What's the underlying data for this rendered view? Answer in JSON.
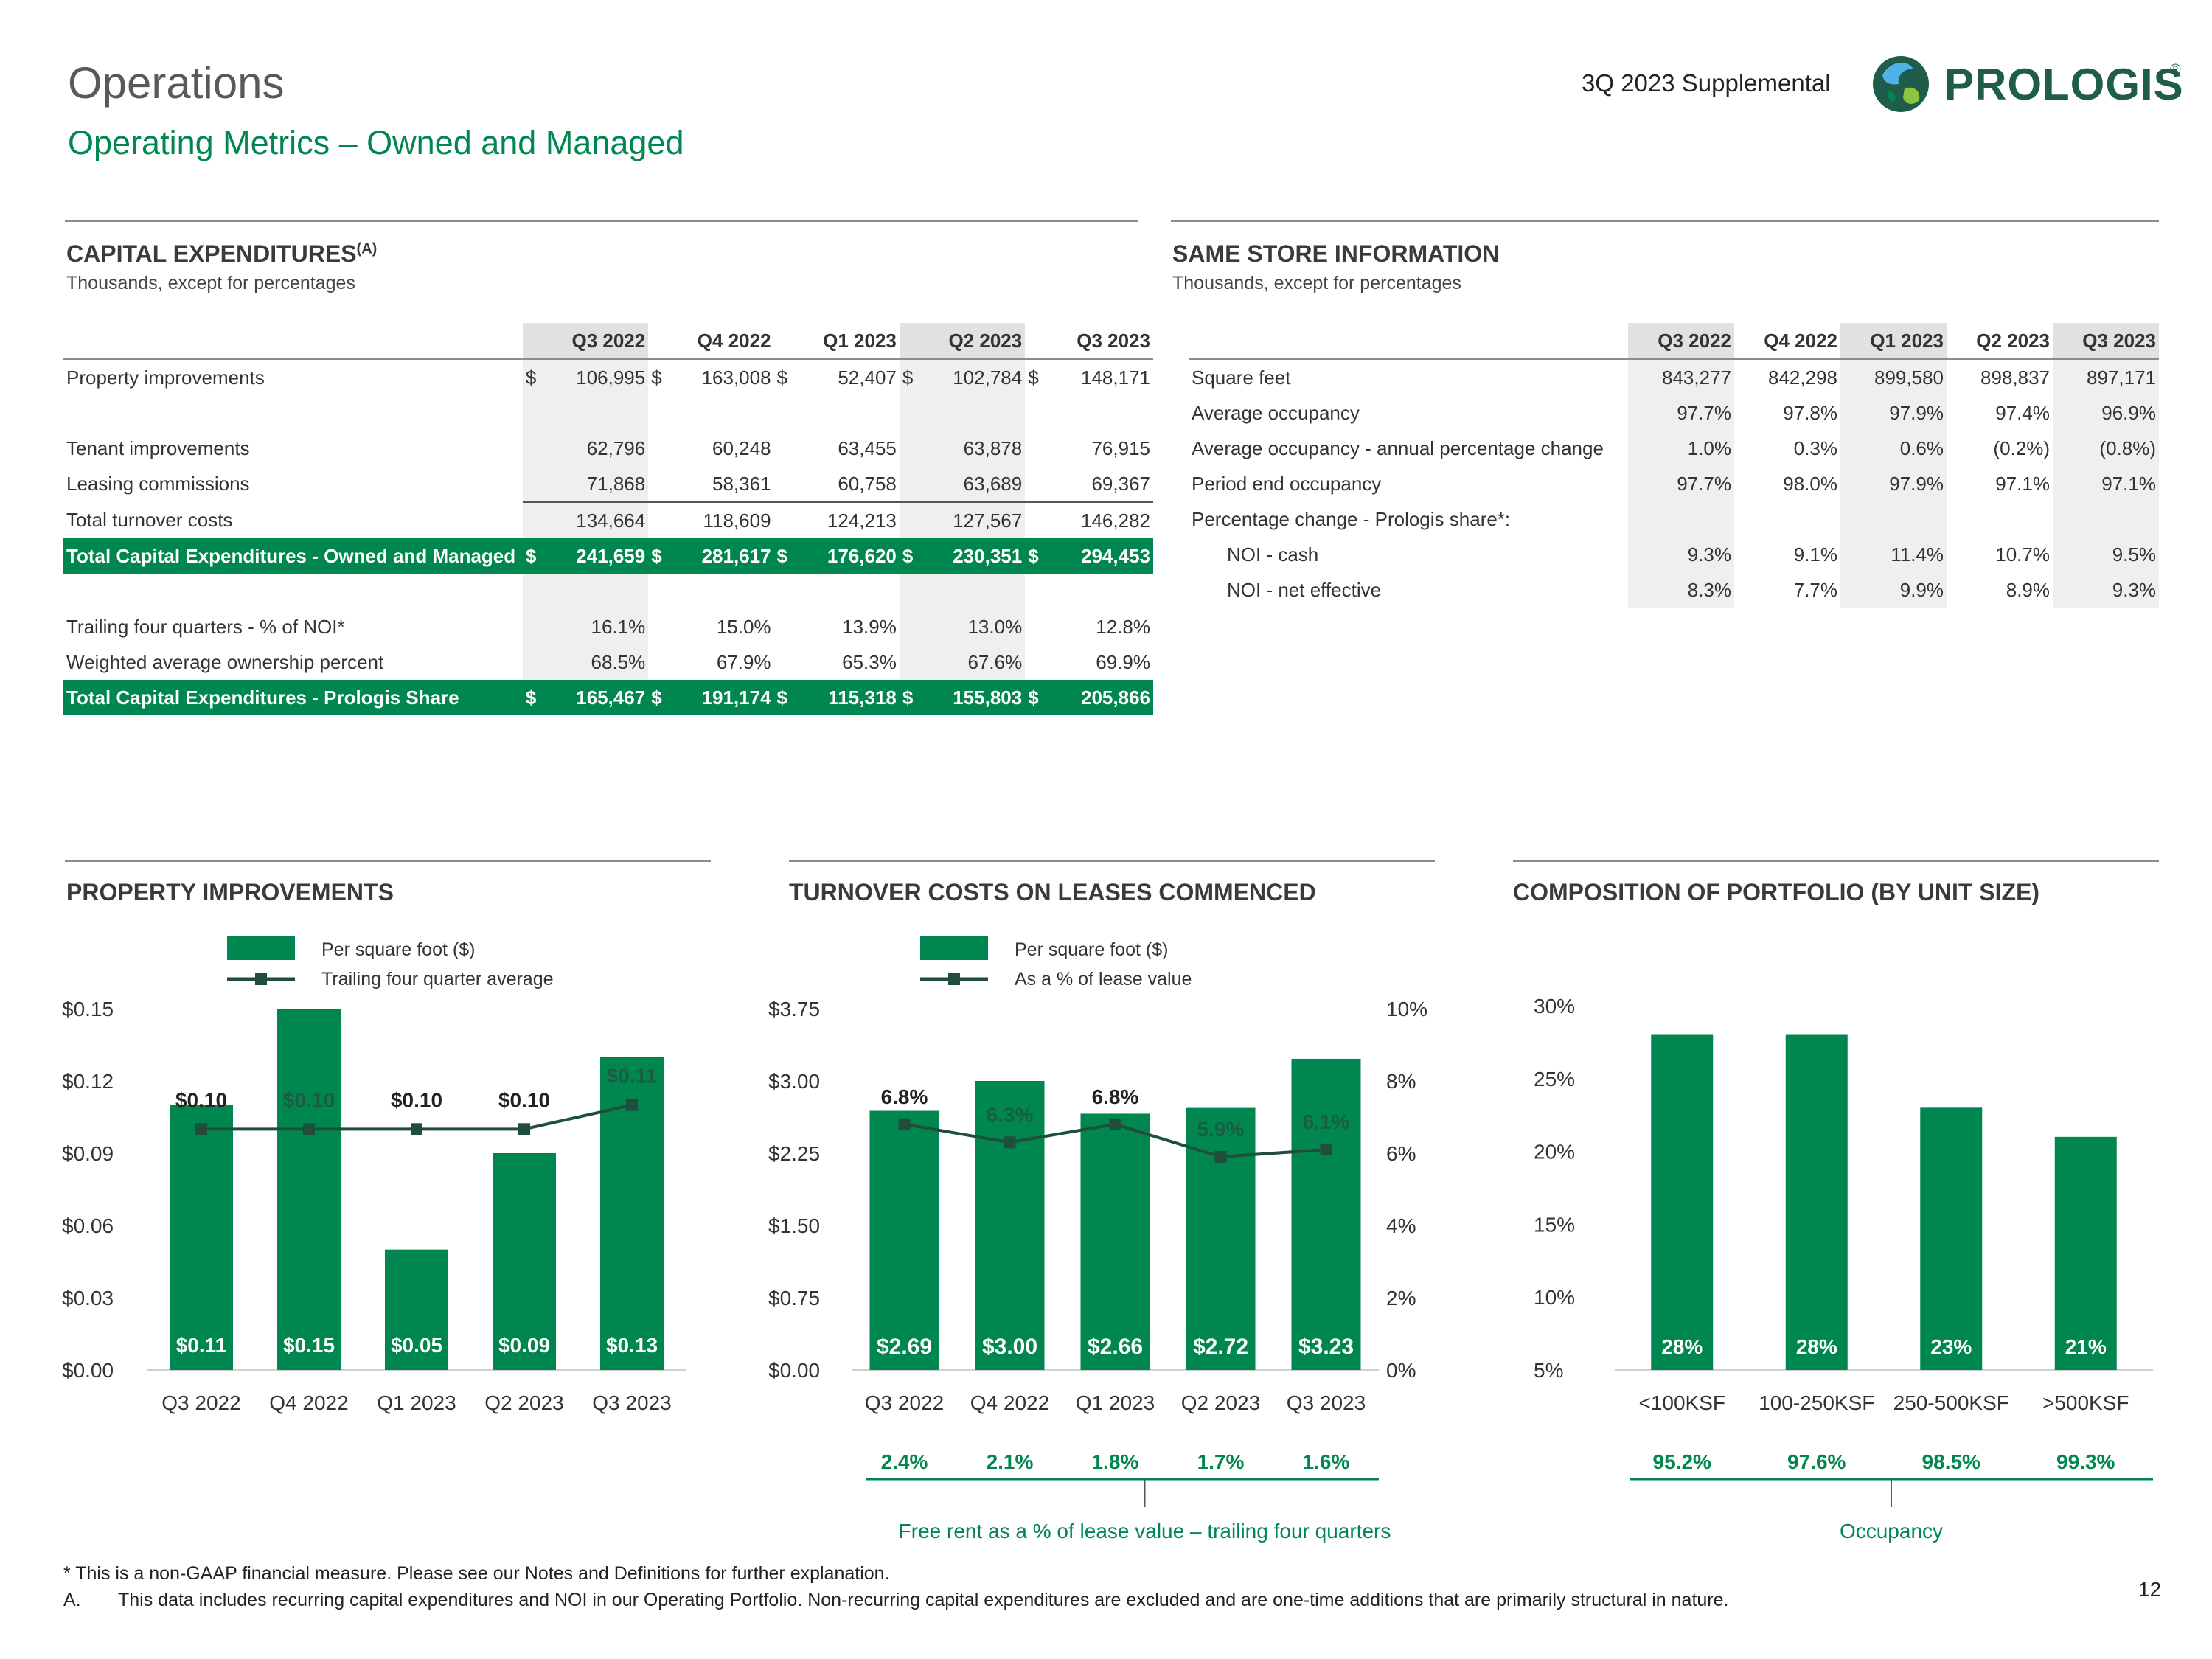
{
  "header": {
    "title": "Operations",
    "subtitle": "Operating Metrics – Owned and Managed",
    "supplemental": "3Q 2023 Supplemental",
    "logo_text": "PROLOGIS",
    "logo_mark": "®"
  },
  "colors": {
    "brand_green": "#00874F",
    "dark_green": "#1F4E3D",
    "rule_gray": "#8c8c8c"
  },
  "capex": {
    "title": "CAPITAL EXPENDITURES",
    "title_sup": "(A)",
    "units": "Thousands, except for percentages",
    "columns": [
      "Q3 2022",
      "Q4 2022",
      "Q1 2023",
      "Q2 2023",
      "Q3 2023"
    ],
    "rows": {
      "property_improvements": {
        "label": "Property improvements",
        "values": [
          "106,995",
          "163,008",
          "52,407",
          "102,784",
          "148,171"
        ]
      },
      "tenant_improvements": {
        "label": "Tenant improvements",
        "values": [
          "62,796",
          "60,248",
          "63,455",
          "63,878",
          "76,915"
        ]
      },
      "leasing_commissions": {
        "label": "Leasing commissions",
        "values": [
          "71,868",
          "58,361",
          "60,758",
          "63,689",
          "69,367"
        ]
      },
      "total_turnover": {
        "label": "Total turnover costs",
        "values": [
          "134,664",
          "118,609",
          "124,213",
          "127,567",
          "146,282"
        ]
      },
      "total_owned": {
        "label": "Total Capital Expenditures - Owned and Managed",
        "values": [
          "241,659",
          "281,617",
          "176,620",
          "230,351",
          "294,453"
        ]
      },
      "trailing_noi": {
        "label": "Trailing four quarters - % of NOI*",
        "values": [
          "16.1%",
          "15.0%",
          "13.9%",
          "13.0%",
          "12.8%"
        ]
      },
      "ownership_pct": {
        "label": "Weighted average ownership percent",
        "values": [
          "68.5%",
          "67.9%",
          "65.3%",
          "67.6%",
          "69.9%"
        ]
      },
      "total_share": {
        "label": "Total Capital Expenditures - Prologis Share",
        "values": [
          "165,467",
          "191,174",
          "115,318",
          "155,803",
          "205,866"
        ]
      }
    },
    "currency": "$"
  },
  "same_store": {
    "title": "SAME STORE INFORMATION",
    "units": "Thousands, except for percentages",
    "columns": [
      "Q3 2022",
      "Q4 2022",
      "Q1 2023",
      "Q2 2023",
      "Q3 2023"
    ],
    "rows": [
      {
        "label": "Square feet",
        "values": [
          "843,277",
          "842,298",
          "899,580",
          "898,837",
          "897,171"
        ]
      },
      {
        "label": "Average occupancy",
        "values": [
          "97.7%",
          "97.8%",
          "97.9%",
          "97.4%",
          "96.9%"
        ]
      },
      {
        "label": "Average occupancy - annual percentage change",
        "values": [
          "1.0%",
          "0.3%",
          "0.6%",
          "(0.2%)",
          "(0.8%)"
        ]
      },
      {
        "label": "Period end occupancy",
        "values": [
          "97.7%",
          "98.0%",
          "97.9%",
          "97.1%",
          "97.1%"
        ]
      },
      {
        "label": "Percentage change - Prologis share*:",
        "values": [
          "",
          "",
          "",
          "",
          ""
        ]
      },
      {
        "label": "NOI - cash",
        "values": [
          "9.3%",
          "9.1%",
          "11.4%",
          "10.7%",
          "9.5%"
        ]
      },
      {
        "label": "NOI - net effective",
        "values": [
          "8.3%",
          "7.7%",
          "9.9%",
          "8.9%",
          "9.3%"
        ]
      }
    ]
  },
  "chart_data": [
    {
      "type": "bar",
      "title": "PROPERTY IMPROVEMENTS",
      "categories": [
        "Q3 2022",
        "Q4 2022",
        "Q1 2023",
        "Q2 2023",
        "Q3 2023"
      ],
      "series": [
        {
          "name": "Per square foot ($)",
          "kind": "bar",
          "values": [
            0.11,
            0.15,
            0.05,
            0.09,
            0.13
          ],
          "labels": [
            "$0.11",
            "$0.15",
            "$0.05",
            "$0.09",
            "$0.13"
          ]
        },
        {
          "name": "Trailing four quarter average",
          "kind": "line",
          "values": [
            0.1,
            0.1,
            0.1,
            0.1,
            0.11
          ],
          "labels": [
            "$0.10",
            "$0.10",
            "$0.10",
            "$0.10",
            "$0.11"
          ]
        }
      ],
      "ylim": [
        0,
        0.15
      ],
      "yticks": [
        "$0.00",
        "$0.03",
        "$0.06",
        "$0.09",
        "$0.12",
        "$0.15"
      ]
    },
    {
      "type": "bar",
      "title": "TURNOVER COSTS ON LEASES COMMENCED",
      "categories": [
        "Q3 2022",
        "Q4 2022",
        "Q1 2023",
        "Q2 2023",
        "Q3 2023"
      ],
      "series": [
        {
          "name": "Per square foot ($)",
          "kind": "bar",
          "axis": "left",
          "values": [
            2.69,
            3.0,
            2.66,
            2.72,
            3.23
          ],
          "labels": [
            "$2.69",
            "$3.00",
            "$2.66",
            "$2.72",
            "$3.23"
          ]
        },
        {
          "name": "As a % of lease value",
          "kind": "line",
          "axis": "right",
          "values": [
            6.8,
            6.3,
            6.8,
            5.9,
            6.1
          ],
          "labels": [
            "6.8%",
            "6.3%",
            "6.8%",
            "5.9%",
            "6.1%"
          ]
        }
      ],
      "ylim": [
        0,
        3.75
      ],
      "yticks": [
        "$0.00",
        "$0.75",
        "$1.50",
        "$2.25",
        "$3.00",
        "$3.75"
      ],
      "y2lim": [
        0,
        10
      ],
      "y2ticks": [
        "0%",
        "2%",
        "4%",
        "6%",
        "8%",
        "10%"
      ],
      "footer_values": [
        "2.4%",
        "2.1%",
        "1.8%",
        "1.7%",
        "1.6%"
      ],
      "footer_label": "Free rent as a % of lease value – trailing four quarters"
    },
    {
      "type": "bar",
      "title": "COMPOSITION OF PORTFOLIO (BY UNIT SIZE)",
      "categories": [
        "<100KSF",
        "100-250KSF",
        "250-500KSF",
        ">500KSF"
      ],
      "series": [
        {
          "name": "Composition",
          "kind": "bar",
          "values": [
            28,
            28,
            23,
            21
          ],
          "labels": [
            "28%",
            "28%",
            "23%",
            "21%"
          ]
        }
      ],
      "ylim": [
        5,
        30
      ],
      "yticks": [
        "5%",
        "10%",
        "15%",
        "20%",
        "25%",
        "30%"
      ],
      "footer_values": [
        "95.2%",
        "97.6%",
        "98.5%",
        "99.3%"
      ],
      "footer_label": "Occupancy"
    }
  ],
  "footnotes": {
    "star": "* This is a non-GAAP financial measure. Please see our Notes and Definitions for further explanation.",
    "a_marker": "A.",
    "a_text": "This data includes recurring capital expenditures and NOI in our Operating Portfolio. Non-recurring capital expenditures are excluded and are one-time additions that are primarily structural in nature."
  },
  "page_number": "12"
}
